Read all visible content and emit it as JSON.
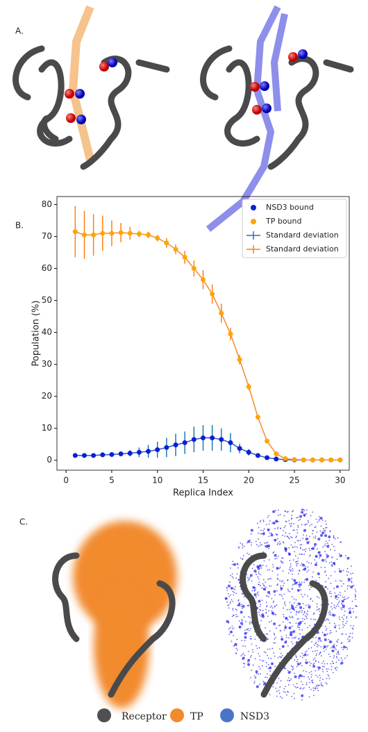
{
  "panels": [
    "A.",
    "B.",
    "C."
  ],
  "bottom_legend": [
    {
      "name": "Receptor",
      "color": "#505050"
    },
    {
      "name": "TP",
      "color": "#f28a2e"
    },
    {
      "name": "NSD3",
      "color": "#4a74c9"
    }
  ],
  "chart_data": {
    "type": "line",
    "xlabel": "Replica Index",
    "ylabel": "Population (%)",
    "x": [
      1,
      2,
      3,
      4,
      5,
      6,
      7,
      8,
      9,
      10,
      11,
      12,
      13,
      14,
      15,
      16,
      17,
      18,
      19,
      20,
      21,
      22,
      23,
      24,
      25,
      26,
      27,
      28,
      29,
      30
    ],
    "series": [
      {
        "name": "NSD3 bound",
        "color": "#0a1fd6",
        "line_color": "#2a4fc8",
        "error_name": "Standard deviation",
        "error_color": "#1f77b4",
        "values": [
          1.5,
          1.5,
          1.5,
          1.7,
          1.8,
          2,
          2.2,
          2.5,
          2.8,
          3.3,
          4,
          4.8,
          5.5,
          6.5,
          7,
          7,
          6.5,
          5.5,
          3.7,
          2.5,
          1.5,
          0.8,
          0.4,
          0.2,
          0.1,
          0.1,
          0.1,
          0.1,
          0.1,
          0.1
        ],
        "errors": [
          0.5,
          0.5,
          0.5,
          0.5,
          0.5,
          0.7,
          1,
          1.5,
          2,
          2.5,
          3,
          3.5,
          3.5,
          4,
          4,
          4,
          3.5,
          3,
          1.5,
          1,
          0.5,
          0.3,
          0.2,
          0.1,
          0.1,
          0.1,
          0.1,
          0.1,
          0.1,
          0.1
        ]
      },
      {
        "name": "TP bound",
        "color": "#ffa500",
        "line_color": "#f28a2e",
        "error_name": "Standard deviation",
        "error_color": "#ff7f0e",
        "values": [
          71.5,
          70.5,
          70.5,
          71,
          71,
          71.2,
          71,
          70.8,
          70.5,
          69.5,
          68,
          66,
          63.5,
          60,
          56.5,
          52,
          46,
          39.5,
          31.5,
          23,
          13.5,
          6,
          2,
          0.5,
          0.2,
          0.1,
          0.1,
          0.1,
          0.1,
          0.1
        ],
        "errors": [
          8,
          7.5,
          6.5,
          5.5,
          4,
          3,
          2,
          1,
          1,
          1,
          1.5,
          1.5,
          2,
          2.5,
          3,
          3,
          3,
          2,
          1.5,
          1,
          0.5,
          0.5,
          0.5,
          0.1,
          0.1,
          0.1,
          0.1,
          0.1,
          0.1,
          0.1
        ]
      }
    ],
    "xlim": [
      -1,
      31
    ],
    "xticks": [
      0,
      5,
      10,
      15,
      20,
      25,
      30
    ],
    "ylim": [
      -3.1,
      82.5
    ],
    "yticks": [
      0,
      10,
      20,
      30,
      40,
      50,
      60,
      70,
      80
    ],
    "legend": "upper right",
    "grid": false
  }
}
